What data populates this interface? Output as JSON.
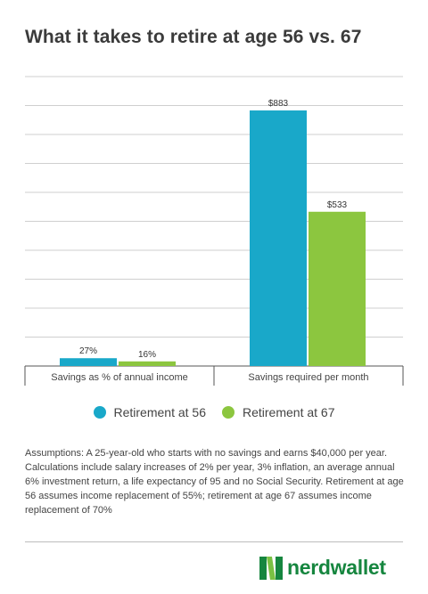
{
  "chart_data": {
    "type": "bar",
    "title": "What it takes to retire at age 56 vs. 67",
    "categories": [
      "Savings as % of annual income",
      "Savings required per month"
    ],
    "series": [
      {
        "name": "Retirement at 56",
        "color": "#19a8c9",
        "values": [
          27,
          883
        ],
        "labels": [
          "27%",
          "$883"
        ]
      },
      {
        "name": "Retirement at 67",
        "color": "#8cc63f",
        "values": [
          16,
          533
        ],
        "labels": [
          "16%",
          "$533"
        ]
      }
    ],
    "grid": true,
    "legend_position": "bottom",
    "ylim": [
      0,
      1000
    ]
  },
  "assumptions": "Assumptions: A 25-year-old who starts with no savings and earns $40,000 per year. Calculations include salary increases of 2% per year,  3% inflation, an average annual 6% investment return, a life expectancy of 95 and no Social Security. Retirement at age 56 assumes income replacement of 55%; retirement at age 67 assumes income replacement of 70%",
  "brand": {
    "name": "nerdwallet",
    "color": "#16863f",
    "icon": "nerdwallet-n-logo"
  }
}
